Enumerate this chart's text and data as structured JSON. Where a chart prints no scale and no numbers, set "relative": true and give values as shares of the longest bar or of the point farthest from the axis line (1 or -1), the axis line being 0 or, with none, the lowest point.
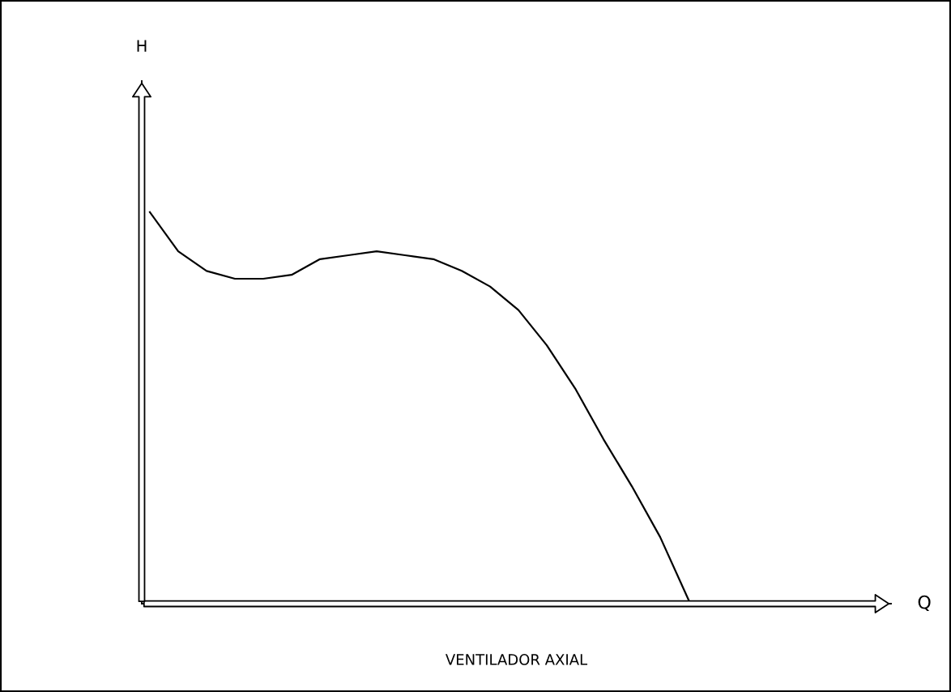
{
  "chart_data": {
    "type": "line",
    "title": "VENTILADOR AXIAL",
    "annotations": [
      "H",
      "Q"
    ],
    "relative": true,
    "tick_labels": false,
    "categories": [
      null,
      null,
      null,
      null,
      null,
      null,
      null,
      null,
      null,
      null,
      null,
      null,
      null,
      null,
      null,
      null,
      null,
      null,
      null,
      null
    ],
    "series": [
      {
        "color": "#000000",
        "values": [
          1.0,
          0.9,
          0.85,
          0.83,
          0.83,
          0.84,
          0.88,
          0.89,
          0.9,
          0.89,
          0.88,
          0.85,
          0.81,
          0.75,
          0.66,
          0.55,
          0.42,
          0.3,
          0.17,
          0.01
        ]
      }
    ]
  }
}
